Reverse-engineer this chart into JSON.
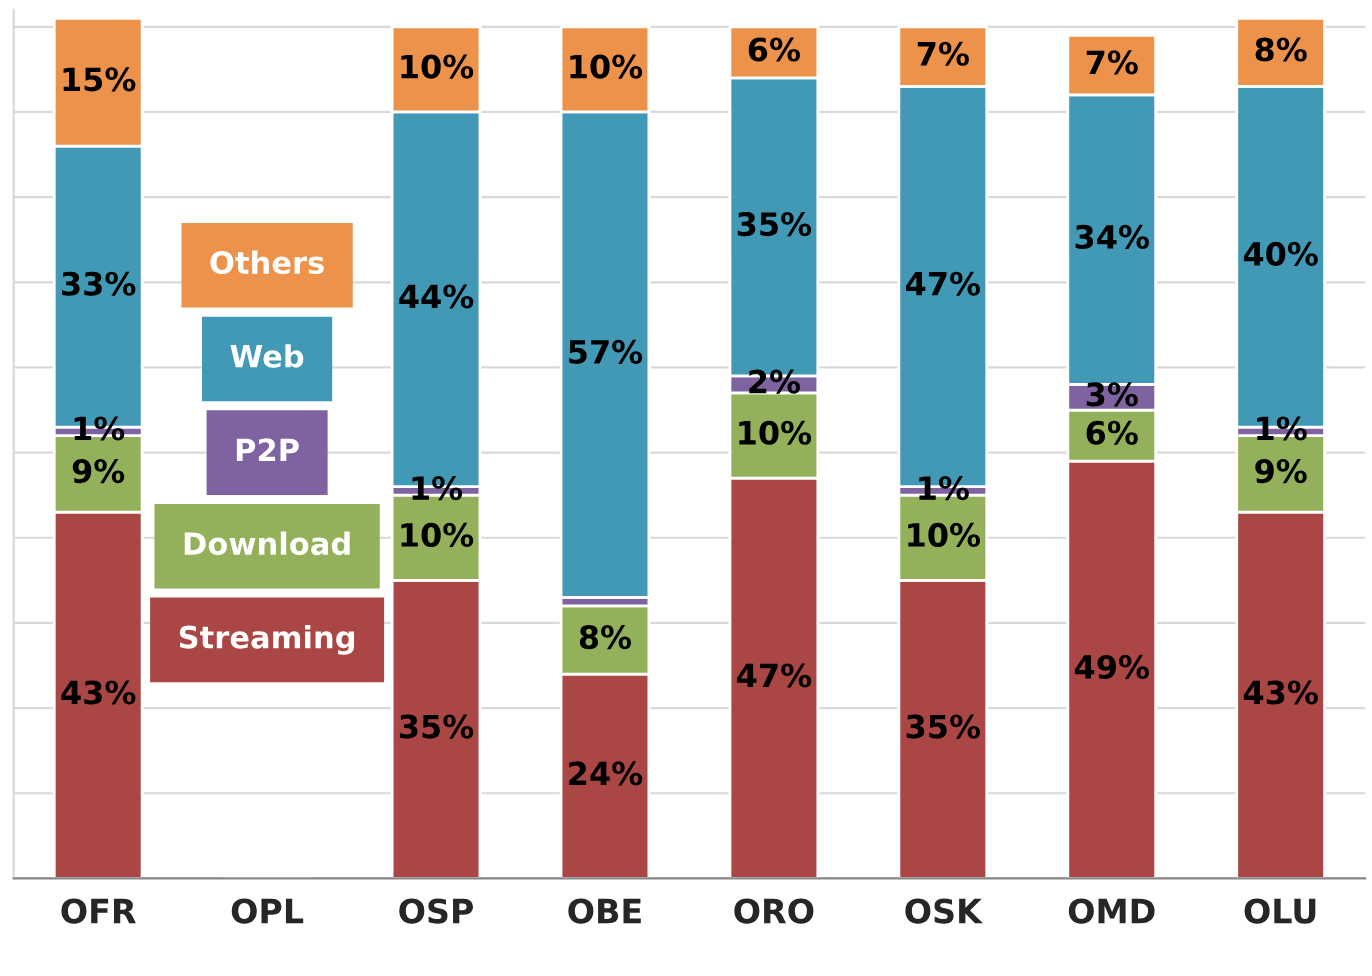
{
  "chart_data": {
    "type": "bar",
    "stacked": true,
    "categories": [
      "OFR",
      "OPL",
      "OSP",
      "OBE",
      "ORO",
      "OSK",
      "OMD",
      "OLU"
    ],
    "series": [
      {
        "name": "Streaming",
        "color": "#aa4644",
        "values": [
          43,
          null,
          35,
          24,
          47,
          35,
          49,
          43
        ],
        "value_labels": [
          "43%",
          null,
          "35%",
          "24%",
          "47%",
          "35%",
          "49%",
          "43%"
        ]
      },
      {
        "name": "Download",
        "color": "#93b05a",
        "values": [
          9,
          null,
          10,
          8,
          10,
          10,
          6,
          9
        ],
        "value_labels": [
          "9%",
          null,
          "10%",
          "8%",
          "10%",
          "10%",
          "6%",
          "9%"
        ]
      },
      {
        "name": "P2P",
        "color": "#7f63a0",
        "values": [
          1,
          null,
          1,
          1,
          2,
          1,
          3,
          1
        ],
        "value_labels": [
          "1%",
          null,
          "1%",
          null,
          "2%",
          "1%",
          "3%",
          "1%"
        ]
      },
      {
        "name": "Web",
        "color": "#4199b5",
        "values": [
          33,
          null,
          44,
          57,
          35,
          47,
          34,
          40
        ],
        "value_labels": [
          "33%",
          null,
          "44%",
          "57%",
          "35%",
          "47%",
          "34%",
          "40%"
        ]
      },
      {
        "name": "Others",
        "color": "#ec924a",
        "values": [
          15,
          null,
          10,
          10,
          6,
          7,
          7,
          8
        ],
        "value_labels": [
          "15%",
          null,
          "10%",
          "10%",
          "6%",
          "7%",
          "7%",
          "8%"
        ]
      }
    ],
    "ylim": [
      0,
      102
    ],
    "yticks": [
      {
        "value": 0,
        "label": null
      },
      {
        "value": 10,
        "label": null
      },
      {
        "value": 20,
        "label": null
      },
      {
        "value": 30,
        "label": null
      },
      {
        "value": 40,
        "label": null
      },
      {
        "value": 50,
        "label": null
      },
      {
        "value": 60,
        "label": null
      },
      {
        "value": 70,
        "label": null
      },
      {
        "value": 80,
        "label": null
      },
      {
        "value": 90,
        "label": null
      },
      {
        "value": 100,
        "label": null
      }
    ],
    "grid": "y",
    "legend": "left",
    "tick_labels": "x"
  }
}
